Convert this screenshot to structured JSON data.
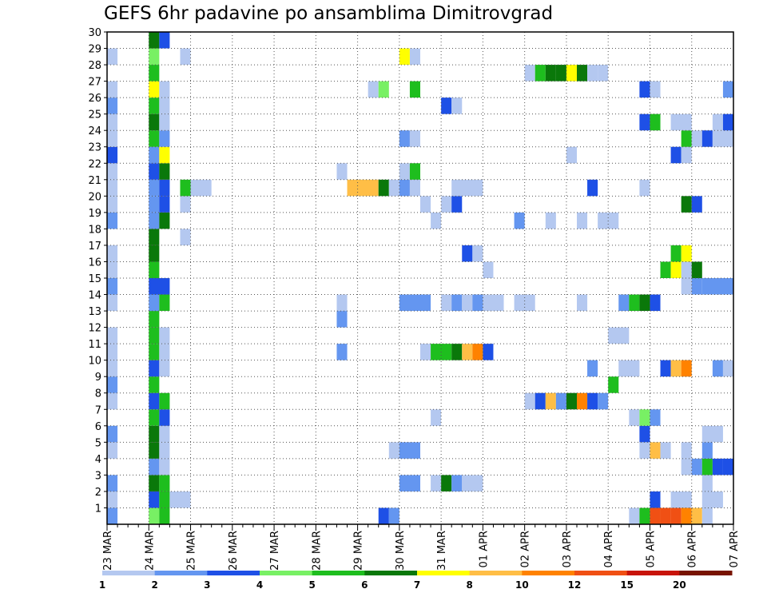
{
  "chart_data": {
    "type": "heatmap",
    "title": "GEFS 6hr padavine po ansamblima Dimitrovgrad",
    "xlabel": "",
    "ylabel": "",
    "x_tick_labels": [
      "23 MAR",
      "24 MAR",
      "25 MAR",
      "26 MAR",
      "27 MAR",
      "28 MAR",
      "29 MAR",
      "30 MAR",
      "31 MAR",
      "01 APR",
      "02 APR",
      "03 APR",
      "04 APR",
      "05 APR",
      "06 APR",
      "07 APR"
    ],
    "x_range_days": [
      0,
      15
    ],
    "y_tick_labels": [
      "1",
      "2",
      "3",
      "4",
      "5",
      "6",
      "7",
      "8",
      "9",
      "10",
      "11",
      "12",
      "13",
      "14",
      "15",
      "16",
      "17",
      "18",
      "19",
      "20",
      "21",
      "22",
      "23",
      "24",
      "25",
      "26",
      "27",
      "28",
      "29",
      "30"
    ],
    "y_range": [
      0,
      30
    ],
    "grid": true,
    "legend_placement": "bottom",
    "legend_thresholds": [
      "1",
      "2",
      "3",
      "4",
      "5",
      "6",
      "7",
      "8",
      "10",
      "12",
      "15",
      "20"
    ],
    "legend_colors": [
      "#b4c8f0",
      "#6496f0",
      "#1e50e6",
      "#78f064",
      "#1ebe1e",
      "#0a780a",
      "#ffff00",
      "#ffbe46",
      "#ff8200",
      "#f05014",
      "#c8140a",
      "#781400"
    ],
    "cells_note": "each cell: [member_row, x_start_day, x_end_day, color_class(0-11)]",
    "cells": [
      [
        0,
        0.0,
        0.25,
        1
      ],
      [
        0,
        1.0,
        1.25,
        3
      ],
      [
        0,
        1.25,
        1.5,
        4
      ],
      [
        0,
        6.5,
        6.75,
        2
      ],
      [
        0,
        6.75,
        7.0,
        1
      ],
      [
        0,
        12.5,
        12.75,
        0
      ],
      [
        0,
        12.75,
        13.0,
        4
      ],
      [
        0,
        13.0,
        13.25,
        9
      ],
      [
        0,
        13.25,
        13.5,
        9
      ],
      [
        0,
        13.5,
        13.75,
        9
      ],
      [
        0,
        13.75,
        14.0,
        8
      ],
      [
        0,
        14.0,
        14.25,
        7
      ],
      [
        0,
        14.25,
        14.5,
        0
      ],
      [
        1,
        0.0,
        0.25,
        0
      ],
      [
        1,
        1.0,
        1.25,
        2
      ],
      [
        1,
        1.25,
        1.5,
        4
      ],
      [
        1,
        1.5,
        2.0,
        0
      ],
      [
        1,
        13.0,
        13.25,
        2
      ],
      [
        1,
        13.5,
        14.0,
        0
      ],
      [
        1,
        14.25,
        14.75,
        0
      ],
      [
        2,
        0.0,
        0.25,
        1
      ],
      [
        2,
        1.0,
        1.25,
        5
      ],
      [
        2,
        1.25,
        1.5,
        4
      ],
      [
        2,
        7.0,
        7.5,
        1
      ],
      [
        2,
        7.75,
        8.0,
        0
      ],
      [
        2,
        8.0,
        8.25,
        5
      ],
      [
        2,
        8.25,
        8.5,
        1
      ],
      [
        2,
        8.5,
        9.0,
        0
      ],
      [
        2,
        14.25,
        14.5,
        0
      ],
      [
        3,
        1.0,
        1.25,
        1
      ],
      [
        3,
        1.25,
        1.5,
        0
      ],
      [
        3,
        13.75,
        14.0,
        0
      ],
      [
        3,
        14.0,
        14.25,
        1
      ],
      [
        3,
        14.25,
        14.5,
        4
      ],
      [
        3,
        14.5,
        14.75,
        2
      ],
      [
        3,
        14.75,
        15.0,
        2
      ],
      [
        4,
        0.0,
        0.25,
        0
      ],
      [
        4,
        1.0,
        1.25,
        5
      ],
      [
        4,
        1.25,
        1.5,
        0
      ],
      [
        4,
        6.75,
        7.0,
        0
      ],
      [
        4,
        7.0,
        7.5,
        1
      ],
      [
        4,
        12.75,
        13.0,
        0
      ],
      [
        4,
        13.0,
        13.25,
        7
      ],
      [
        4,
        13.25,
        13.5,
        0
      ],
      [
        4,
        13.75,
        14.0,
        0
      ],
      [
        4,
        14.25,
        14.5,
        1
      ],
      [
        5,
        0.0,
        0.25,
        1
      ],
      [
        5,
        1.0,
        1.25,
        5
      ],
      [
        5,
        1.25,
        1.5,
        0
      ],
      [
        5,
        12.75,
        13.0,
        2
      ],
      [
        5,
        14.25,
        14.75,
        0
      ],
      [
        6,
        1.0,
        1.25,
        4
      ],
      [
        6,
        1.25,
        1.5,
        2
      ],
      [
        6,
        7.75,
        8.0,
        0
      ],
      [
        6,
        12.5,
        12.75,
        0
      ],
      [
        6,
        12.75,
        13.0,
        3
      ],
      [
        6,
        13.0,
        13.25,
        1
      ],
      [
        7,
        0.0,
        0.25,
        0
      ],
      [
        7,
        1.0,
        1.25,
        2
      ],
      [
        7,
        1.25,
        1.5,
        4
      ],
      [
        7,
        10.0,
        10.25,
        0
      ],
      [
        7,
        10.25,
        10.5,
        2
      ],
      [
        7,
        10.5,
        10.75,
        7
      ],
      [
        7,
        10.75,
        11.0,
        1
      ],
      [
        7,
        11.0,
        11.25,
        5
      ],
      [
        7,
        11.25,
        11.5,
        8
      ],
      [
        7,
        11.5,
        11.75,
        2
      ],
      [
        7,
        11.75,
        12.0,
        1
      ],
      [
        8,
        0.0,
        0.25,
        1
      ],
      [
        8,
        1.0,
        1.25,
        4
      ],
      [
        8,
        12.0,
        12.25,
        4
      ],
      [
        9,
        0.0,
        0.25,
        0
      ],
      [
        9,
        1.0,
        1.25,
        2
      ],
      [
        9,
        1.25,
        1.5,
        0
      ],
      [
        9,
        11.5,
        11.75,
        1
      ],
      [
        9,
        12.25,
        12.75,
        0
      ],
      [
        9,
        13.25,
        13.5,
        2
      ],
      [
        9,
        13.5,
        13.75,
        7
      ],
      [
        9,
        13.75,
        14.0,
        8
      ],
      [
        9,
        14.5,
        14.75,
        1
      ],
      [
        9,
        14.75,
        15.0,
        0
      ],
      [
        10,
        0.0,
        0.25,
        0
      ],
      [
        10,
        1.0,
        1.25,
        4
      ],
      [
        10,
        1.25,
        1.5,
        0
      ],
      [
        10,
        5.5,
        5.75,
        1
      ],
      [
        10,
        7.5,
        7.75,
        0
      ],
      [
        10,
        7.75,
        8.25,
        4
      ],
      [
        10,
        8.25,
        8.5,
        5
      ],
      [
        10,
        8.5,
        8.75,
        7
      ],
      [
        10,
        8.75,
        9.0,
        8
      ],
      [
        10,
        9.0,
        9.25,
        2
      ],
      [
        11,
        0.0,
        0.25,
        0
      ],
      [
        11,
        1.0,
        1.25,
        4
      ],
      [
        11,
        1.25,
        1.5,
        0
      ],
      [
        11,
        12.0,
        12.5,
        0
      ],
      [
        12,
        1.0,
        1.25,
        4
      ],
      [
        12,
        5.5,
        5.75,
        1
      ],
      [
        13,
        0.0,
        0.25,
        0
      ],
      [
        13,
        1.0,
        1.25,
        1
      ],
      [
        13,
        1.25,
        1.5,
        4
      ],
      [
        13,
        5.5,
        5.75,
        0
      ],
      [
        13,
        7.0,
        7.75,
        1
      ],
      [
        13,
        8.0,
        8.25,
        0
      ],
      [
        13,
        8.25,
        8.5,
        1
      ],
      [
        13,
        8.5,
        8.75,
        0
      ],
      [
        13,
        8.75,
        9.0,
        1
      ],
      [
        13,
        9.0,
        9.5,
        0
      ],
      [
        13,
        9.75,
        10.25,
        0
      ],
      [
        13,
        11.25,
        11.5,
        0
      ],
      [
        13,
        12.25,
        12.5,
        1
      ],
      [
        13,
        12.5,
        12.75,
        4
      ],
      [
        13,
        12.75,
        13.0,
        5
      ],
      [
        13,
        13.0,
        13.25,
        2
      ],
      [
        14,
        0.0,
        0.25,
        1
      ],
      [
        14,
        1.0,
        1.5,
        2
      ],
      [
        14,
        13.75,
        14.0,
        0
      ],
      [
        14,
        14.0,
        14.25,
        1
      ],
      [
        14,
        14.25,
        15.0,
        1
      ],
      [
        15,
        0.0,
        0.25,
        0
      ],
      [
        15,
        1.0,
        1.25,
        4
      ],
      [
        15,
        9.0,
        9.25,
        0
      ],
      [
        15,
        13.25,
        13.5,
        4
      ],
      [
        15,
        13.5,
        13.75,
        6
      ],
      [
        15,
        13.75,
        14.0,
        0
      ],
      [
        15,
        14.0,
        14.25,
        5
      ],
      [
        16,
        0.0,
        0.25,
        0
      ],
      [
        16,
        1.0,
        1.25,
        5
      ],
      [
        16,
        8.5,
        8.75,
        2
      ],
      [
        16,
        8.75,
        9.0,
        0
      ],
      [
        16,
        13.5,
        13.75,
        4
      ],
      [
        16,
        13.75,
        14.0,
        6
      ],
      [
        17,
        1.0,
        1.25,
        5
      ],
      [
        17,
        1.75,
        2.0,
        0
      ],
      [
        18,
        0.0,
        0.25,
        1
      ],
      [
        18,
        1.0,
        1.25,
        1
      ],
      [
        18,
        1.25,
        1.5,
        5
      ],
      [
        18,
        7.75,
        8.0,
        0
      ],
      [
        18,
        9.75,
        10.0,
        1
      ],
      [
        18,
        10.5,
        10.75,
        0
      ],
      [
        18,
        11.25,
        11.5,
        0
      ],
      [
        18,
        11.75,
        12.25,
        0
      ],
      [
        19,
        0.0,
        0.25,
        0
      ],
      [
        19,
        1.0,
        1.25,
        1
      ],
      [
        19,
        1.25,
        1.5,
        2
      ],
      [
        19,
        1.75,
        2.0,
        0
      ],
      [
        19,
        7.5,
        7.75,
        0
      ],
      [
        19,
        8.0,
        8.25,
        0
      ],
      [
        19,
        8.25,
        8.5,
        2
      ],
      [
        19,
        13.75,
        14.0,
        5
      ],
      [
        19,
        14.0,
        14.25,
        2
      ],
      [
        20,
        0.0,
        0.25,
        0
      ],
      [
        20,
        1.0,
        1.25,
        1
      ],
      [
        20,
        1.25,
        1.5,
        2
      ],
      [
        20,
        1.75,
        2.0,
        4
      ],
      [
        20,
        2.0,
        2.5,
        0
      ],
      [
        20,
        5.75,
        6.5,
        7
      ],
      [
        20,
        6.5,
        6.75,
        5
      ],
      [
        20,
        6.75,
        7.0,
        0
      ],
      [
        20,
        7.0,
        7.25,
        1
      ],
      [
        20,
        7.25,
        7.5,
        0
      ],
      [
        20,
        8.25,
        9.0,
        0
      ],
      [
        20,
        11.5,
        11.75,
        2
      ],
      [
        20,
        12.75,
        13.0,
        0
      ],
      [
        21,
        0.0,
        0.25,
        0
      ],
      [
        21,
        1.0,
        1.25,
        2
      ],
      [
        21,
        1.25,
        1.5,
        5
      ],
      [
        21,
        5.5,
        5.75,
        0
      ],
      [
        21,
        7.0,
        7.25,
        0
      ],
      [
        21,
        7.25,
        7.5,
        4
      ],
      [
        22,
        0.0,
        0.25,
        2
      ],
      [
        22,
        1.0,
        1.25,
        1
      ],
      [
        22,
        1.25,
        1.5,
        6
      ],
      [
        22,
        11.0,
        11.25,
        0
      ],
      [
        22,
        13.5,
        13.75,
        2
      ],
      [
        22,
        13.75,
        14.0,
        0
      ],
      [
        23,
        0.0,
        0.25,
        0
      ],
      [
        23,
        1.0,
        1.25,
        4
      ],
      [
        23,
        1.25,
        1.5,
        1
      ],
      [
        23,
        7.0,
        7.25,
        1
      ],
      [
        23,
        7.25,
        7.5,
        0
      ],
      [
        23,
        13.75,
        14.0,
        4
      ],
      [
        23,
        14.0,
        14.25,
        0
      ],
      [
        23,
        14.25,
        14.5,
        2
      ],
      [
        23,
        14.5,
        15.0,
        0
      ],
      [
        24,
        0.0,
        0.25,
        0
      ],
      [
        24,
        1.0,
        1.25,
        5
      ],
      [
        24,
        1.25,
        1.5,
        0
      ],
      [
        24,
        12.75,
        13.0,
        2
      ],
      [
        24,
        13.0,
        13.25,
        4
      ],
      [
        24,
        13.5,
        14.0,
        0
      ],
      [
        24,
        14.5,
        14.75,
        0
      ],
      [
        24,
        14.75,
        15.0,
        2
      ],
      [
        25,
        0.0,
        0.25,
        1
      ],
      [
        25,
        1.0,
        1.25,
        4
      ],
      [
        25,
        1.25,
        1.5,
        0
      ],
      [
        25,
        8.0,
        8.25,
        2
      ],
      [
        25,
        8.25,
        8.5,
        0
      ],
      [
        26,
        0.0,
        0.25,
        0
      ],
      [
        26,
        1.0,
        1.25,
        6
      ],
      [
        26,
        1.25,
        1.5,
        0
      ],
      [
        26,
        6.25,
        6.5,
        0
      ],
      [
        26,
        6.5,
        6.75,
        3
      ],
      [
        26,
        7.25,
        7.5,
        4
      ],
      [
        26,
        12.75,
        13.0,
        2
      ],
      [
        26,
        13.0,
        13.25,
        0
      ],
      [
        26,
        14.75,
        15.0,
        1
      ],
      [
        27,
        1.0,
        1.25,
        4
      ],
      [
        27,
        10.0,
        10.25,
        0
      ],
      [
        27,
        10.25,
        10.5,
        4
      ],
      [
        27,
        10.5,
        10.75,
        5
      ],
      [
        27,
        10.75,
        11.0,
        5
      ],
      [
        27,
        11.0,
        11.25,
        6
      ],
      [
        27,
        11.25,
        11.5,
        5
      ],
      [
        27,
        11.5,
        11.75,
        0
      ],
      [
        27,
        11.75,
        12.0,
        0
      ],
      [
        28,
        0.0,
        0.25,
        0
      ],
      [
        28,
        1.0,
        1.25,
        3
      ],
      [
        28,
        1.75,
        2.0,
        0
      ],
      [
        28,
        7.0,
        7.25,
        6
      ],
      [
        28,
        7.25,
        7.5,
        0
      ],
      [
        29,
        1.0,
        1.25,
        5
      ],
      [
        29,
        1.25,
        1.5,
        2
      ]
    ]
  }
}
